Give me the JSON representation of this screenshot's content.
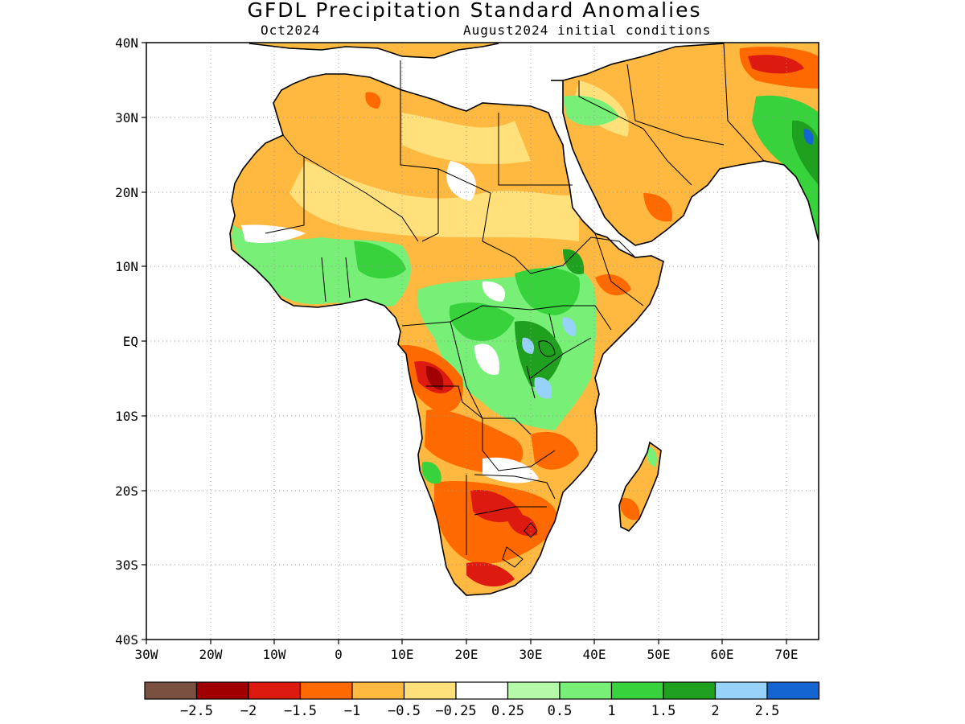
{
  "title": "GFDL Precipitation Standard Anomalies",
  "subtitle_left": "Oct2024",
  "subtitle_right": "August2024 initial conditions",
  "lat_labels": [
    "40N",
    "30N",
    "20N",
    "10N",
    "EQ",
    "10S",
    "20S",
    "30S",
    "40S"
  ],
  "lon_labels": [
    "30W",
    "20W",
    "10W",
    "0",
    "10E",
    "20E",
    "30E",
    "40E",
    "50E",
    "60E",
    "70E"
  ],
  "colorbar": {
    "colors": [
      "#7a5040",
      "#a00000",
      "#dc1a10",
      "#ff6a00",
      "#ffb840",
      "#ffe07a",
      "#ffffff",
      "#b4faa8",
      "#78f078",
      "#37d23c",
      "#1fa01f",
      "#96d2fa",
      "#1464d2"
    ],
    "labels": [
      "-2.5",
      "-2",
      "-1.5",
      "-1",
      "-0.5",
      "-0.25",
      "0.25",
      "0.5",
      "1",
      "1.5",
      "2",
      "2.5"
    ]
  },
  "legend_category_colors": {
    "land_base": "#ffb840",
    "coast": "#000000",
    "grid": "#999999"
  }
}
